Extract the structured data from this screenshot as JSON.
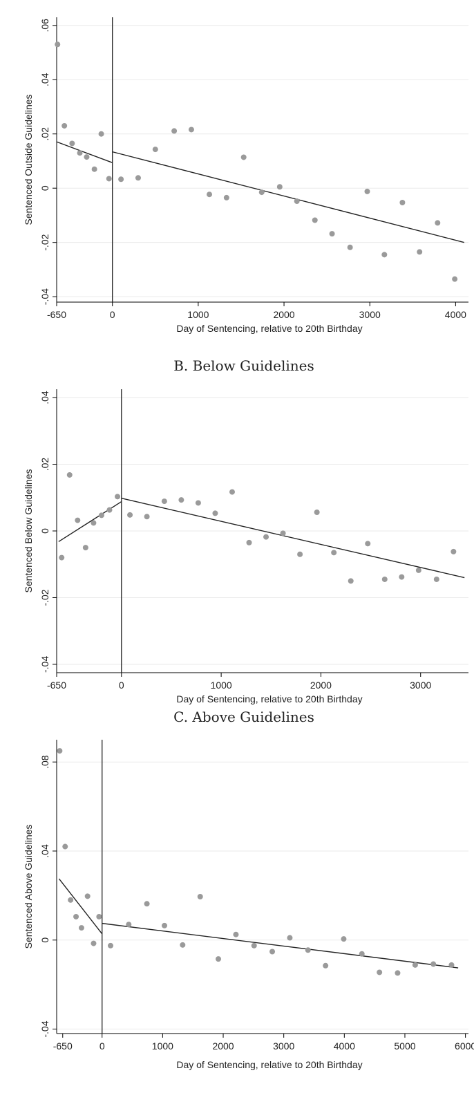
{
  "chart_data": [
    {
      "type": "scatter",
      "title": "",
      "xlabel": "Day of Sentencing, relative to 20th Birthday",
      "ylabel": "Sentenced Outside Guidelines",
      "xlim": [
        -650,
        4150
      ],
      "ylim": [
        -0.042,
        0.063
      ],
      "xticks": [
        -650,
        0,
        1000,
        2000,
        3000,
        4000
      ],
      "xtick_labels": [
        "-650",
        "0",
        "1000",
        "2000",
        "3000",
        "4000"
      ],
      "yticks": [
        -0.04,
        -0.02,
        0,
        0.02,
        0.04,
        0.06
      ],
      "ytick_labels": [
        "-.04",
        "-.02",
        "0",
        ".02",
        ".04",
        ".06"
      ],
      "grid": true,
      "cutoff_x": 0,
      "points": [
        [
          -640,
          0.053
        ],
        [
          -560,
          0.023
        ],
        [
          -470,
          0.0165
        ],
        [
          -380,
          0.013
        ],
        [
          -300,
          0.0115
        ],
        [
          -210,
          0.007
        ],
        [
          -130,
          0.02
        ],
        [
          -40,
          0.0035
        ],
        [
          100,
          0.0033
        ],
        [
          300,
          0.0038
        ],
        [
          500,
          0.0143
        ],
        [
          720,
          0.0211
        ],
        [
          920,
          0.0216
        ],
        [
          1130,
          -0.0023
        ],
        [
          1330,
          -0.0035
        ],
        [
          1530,
          0.0114
        ],
        [
          1740,
          -0.0015
        ],
        [
          1950,
          0.0005
        ],
        [
          2150,
          -0.0048
        ],
        [
          2360,
          -0.0118
        ],
        [
          2560,
          -0.0168
        ],
        [
          2770,
          -0.0218
        ],
        [
          2970,
          -0.0012
        ],
        [
          3170,
          -0.0245
        ],
        [
          3380,
          -0.0053
        ],
        [
          3580,
          -0.0235
        ],
        [
          3790,
          -0.0128
        ],
        [
          3990,
          -0.0335
        ]
      ],
      "fit_left": [
        [
          -650,
          0.0171
        ],
        [
          0,
          0.0094
        ]
      ],
      "fit_right": [
        [
          0,
          0.0134
        ],
        [
          4100,
          -0.02
        ]
      ]
    },
    {
      "type": "scatter",
      "title": "B. Below Guidelines",
      "xlabel": "Day of Sentencing, relative to 20th Birthday",
      "ylabel": "Sentenced Below Guidelines",
      "xlim": [
        -650,
        3480
      ],
      "ylim": [
        -0.0425,
        0.0425
      ],
      "xticks": [
        -650,
        0,
        1000,
        2000,
        3000
      ],
      "xtick_labels": [
        "-650",
        "0",
        "1000",
        "2000",
        "3000"
      ],
      "yticks": [
        -0.04,
        -0.02,
        0,
        0.02,
        0.04
      ],
      "ytick_labels": [
        "-.04",
        "-.02",
        "0",
        ".02",
        ".04"
      ],
      "grid": true,
      "cutoff_x": 0,
      "points": [
        [
          -600,
          -0.008
        ],
        [
          -520,
          0.0168
        ],
        [
          -440,
          0.0032
        ],
        [
          -360,
          -0.005
        ],
        [
          -280,
          0.0024
        ],
        [
          -200,
          0.0047
        ],
        [
          -120,
          0.0063
        ],
        [
          -40,
          0.0103
        ],
        [
          85,
          0.0048
        ],
        [
          255,
          0.0043
        ],
        [
          430,
          0.0089
        ],
        [
          600,
          0.0093
        ],
        [
          770,
          0.0084
        ],
        [
          940,
          0.0053
        ],
        [
          1110,
          0.0117
        ],
        [
          1280,
          -0.0035
        ],
        [
          1450,
          -0.0018
        ],
        [
          1620,
          -0.0007
        ],
        [
          1790,
          -0.007
        ],
        [
          1960,
          0.0056
        ],
        [
          2130,
          -0.0065
        ],
        [
          2300,
          -0.015
        ],
        [
          2470,
          -0.0038
        ],
        [
          2640,
          -0.0145
        ],
        [
          2810,
          -0.0138
        ],
        [
          2980,
          -0.0118
        ],
        [
          3160,
          -0.0145
        ],
        [
          3330,
          -0.0062
        ]
      ],
      "fit_left": [
        [
          -630,
          -0.0032
        ],
        [
          0,
          0.0088
        ]
      ],
      "fit_right": [
        [
          0,
          0.0098
        ],
        [
          3440,
          -0.014
        ]
      ]
    },
    {
      "type": "scatter",
      "title": "C. Above Guidelines",
      "xlabel": "Day of Sentencing, relative to 20th Birthday",
      "ylabel": "Sentenced Above Guidelines",
      "xlim": [
        -750,
        6050
      ],
      "ylim": [
        -0.042,
        0.09
      ],
      "xticks": [
        -650,
        0,
        1000,
        2000,
        3000,
        4000,
        5000,
        6000
      ],
      "xtick_labels": [
        "-650",
        "0",
        "1000",
        "2000",
        "3000",
        "4000",
        "5000",
        "6000"
      ],
      "yticks": [
        -0.04,
        0,
        0.04,
        0.08
      ],
      "ytick_labels": [
        "-.04",
        "0",
        ".04",
        ".08"
      ],
      "grid": true,
      "cutoff_x": 0,
      "points": [
        [
          -700,
          0.085
        ],
        [
          -610,
          0.042
        ],
        [
          -520,
          0.018
        ],
        [
          -430,
          0.0105
        ],
        [
          -340,
          0.0055
        ],
        [
          -240,
          0.0197
        ],
        [
          -140,
          -0.0015
        ],
        [
          -50,
          0.0105
        ],
        [
          140,
          -0.0025
        ],
        [
          440,
          0.007
        ],
        [
          740,
          0.0163
        ],
        [
          1030,
          0.0065
        ],
        [
          1330,
          -0.0022
        ],
        [
          1620,
          0.0195
        ],
        [
          1920,
          -0.0085
        ],
        [
          2210,
          0.0025
        ],
        [
          2510,
          -0.0025
        ],
        [
          2810,
          -0.0052
        ],
        [
          3100,
          0.001
        ],
        [
          3400,
          -0.0045
        ],
        [
          3690,
          -0.0115
        ],
        [
          3990,
          0.0005
        ],
        [
          4290,
          -0.0062
        ],
        [
          4580,
          -0.0145
        ],
        [
          4880,
          -0.0148
        ],
        [
          5170,
          -0.0112
        ],
        [
          5470,
          -0.0108
        ],
        [
          5770,
          -0.0112
        ]
      ],
      "fit_left": [
        [
          -710,
          0.0275
        ],
        [
          0,
          0.0028
        ]
      ],
      "fit_right": [
        [
          0,
          0.0075
        ],
        [
          5880,
          -0.0125
        ]
      ]
    }
  ]
}
